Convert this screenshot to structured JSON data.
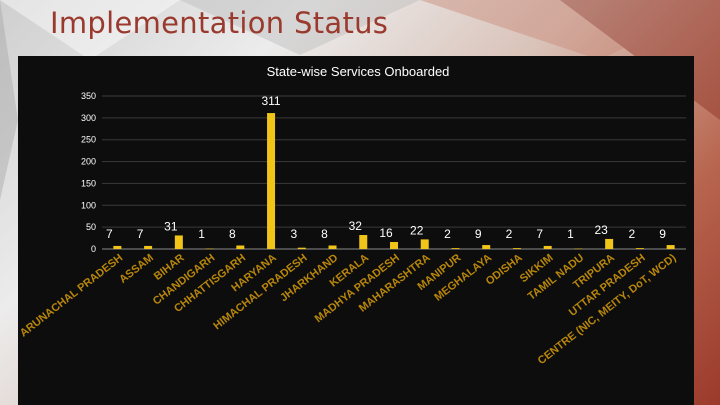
{
  "page": {
    "title": "Implementation Status"
  },
  "colors": {
    "bar": "#f0c419",
    "gridline": "#3a3a3a",
    "axis": "#8a8a8a",
    "panel": "#0d0d0d",
    "xlabel": "#b8860b",
    "title": "#9a3a2e"
  },
  "chart_data": {
    "type": "bar",
    "title": "State-wise Services Onboarded",
    "categories": [
      "ARUNACHAL PRADESH",
      "ASSAM",
      "BIHAR",
      "CHANDIGARH",
      "CHHATTISGARH",
      "HARYANA",
      "HIMACHAL PRADESH",
      "JHARKHAND",
      "KERALA",
      "MADHYA PRADESH",
      "MAHARASHTRA",
      "MANIPUR",
      "MEGHALAYA",
      "ODISHA",
      "SIKKIM",
      "TAMIL NADU",
      "TRIPURA",
      "UTTAR PRADESH",
      "CENTRE (NIC, MEITY, DoT, WCD)"
    ],
    "values": [
      7,
      7,
      31,
      1,
      8,
      311,
      3,
      8,
      32,
      16,
      22,
      2,
      9,
      2,
      7,
      1,
      23,
      2,
      9
    ],
    "ylim": [
      0,
      350
    ],
    "yticks": [
      0,
      50,
      100,
      150,
      200,
      250,
      300,
      350
    ],
    "grid": true,
    "legend": "none"
  }
}
